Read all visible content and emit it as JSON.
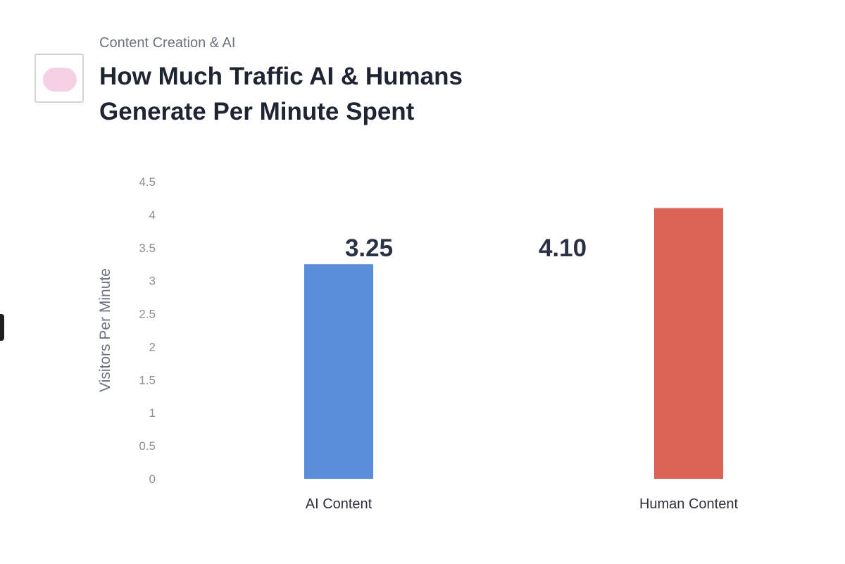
{
  "header": {
    "eyebrow": "Content Creation & AI",
    "title": "How Much Traffic AI & Humans Generate Per Minute Spent"
  },
  "colors": {
    "ai_bar": "#5b8ddb",
    "human_bar": "#d96355",
    "logo_pill": "#f5cfe3"
  },
  "icons": {
    "logo": "logo-icon"
  },
  "chart_data": {
    "type": "bar",
    "title": "How Much Traffic AI & Humans Generate Per Minute Spent",
    "xlabel": "",
    "ylabel": "Visitors Per Minute",
    "categories": [
      "AI Content",
      "Human Content"
    ],
    "values": [
      3.25,
      4.1
    ],
    "data_labels": [
      "3.25",
      "4.10"
    ],
    "colors": [
      "#5b8ddb",
      "#d96355"
    ],
    "ylim": [
      0,
      4.5
    ],
    "yticks": [
      "0",
      "0.5",
      "1",
      "1.5",
      "2",
      "2.5",
      "3",
      "3.5",
      "4",
      "4.5"
    ],
    "grid": false,
    "legend": "none"
  }
}
